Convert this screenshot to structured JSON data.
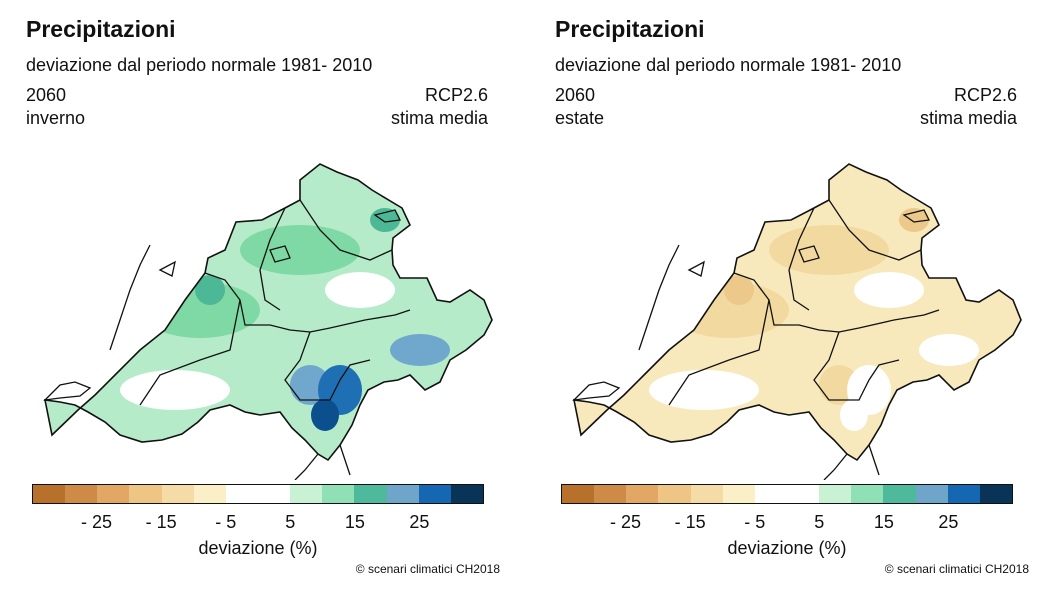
{
  "panels": [
    {
      "title": "Precipitazioni",
      "subtitle": "deviazione dal periodo normale 1981- 2010",
      "year": "2060",
      "season": "inverno",
      "scenario": "RCP2.6",
      "estimate": "stima media",
      "fill_base": "#b5ebc9",
      "patches": [
        {
          "color": "#ffffff"
        },
        {
          "color": "#ffffff"
        },
        {
          "color": "#ffffff"
        },
        {
          "color": "#7fd9a4"
        },
        {
          "color": "#7fd9a4"
        },
        {
          "color": "#4db896"
        },
        {
          "color": "#4db896"
        },
        {
          "color": "#6fa8cc"
        },
        {
          "color": "#6fa8cc"
        },
        {
          "color": "#1f6fb5"
        },
        {
          "color": "#0b4f8f"
        }
      ],
      "colorbar_label": "deviazione (%)",
      "credit": "© scenari climatici CH2018"
    },
    {
      "title": "Precipitazioni",
      "subtitle": "deviazione dal periodo normale 1981- 2010",
      "year": "2060",
      "season": "estate",
      "scenario": "RCP2.6",
      "estimate": "stima media",
      "fill_base": "#f8e9bd",
      "patches": [
        {
          "color": "#ffffff"
        },
        {
          "color": "#ffffff"
        },
        {
          "color": "#ffffff"
        },
        {
          "color": "#f2d9a0"
        },
        {
          "color": "#f2d9a0"
        },
        {
          "color": "#ecc98a"
        },
        {
          "color": "#ecc98a"
        },
        {
          "color": "#ffffff"
        },
        {
          "color": "#f2d9a0"
        },
        {
          "color": "#ffffff"
        },
        {
          "color": "#ffffff"
        }
      ],
      "colorbar_label": "deviazione (%)",
      "credit": "© scenari climatici CH2018"
    }
  ],
  "colorbar": {
    "colors": [
      "#b8712b",
      "#cd8b47",
      "#e2a765",
      "#efc585",
      "#f5dca6",
      "#fbefc8",
      "#ffffff",
      "#ffffff",
      "#c9f2d5",
      "#8fe0b4",
      "#4fb99b",
      "#6fa5c9",
      "#1467b0",
      "#0a3358"
    ],
    "ticks": [
      "- 25",
      "- 15",
      "- 5",
      "5",
      "15",
      "25"
    ],
    "tick_values": [
      -25,
      -15,
      -5,
      5,
      15,
      25
    ]
  }
}
